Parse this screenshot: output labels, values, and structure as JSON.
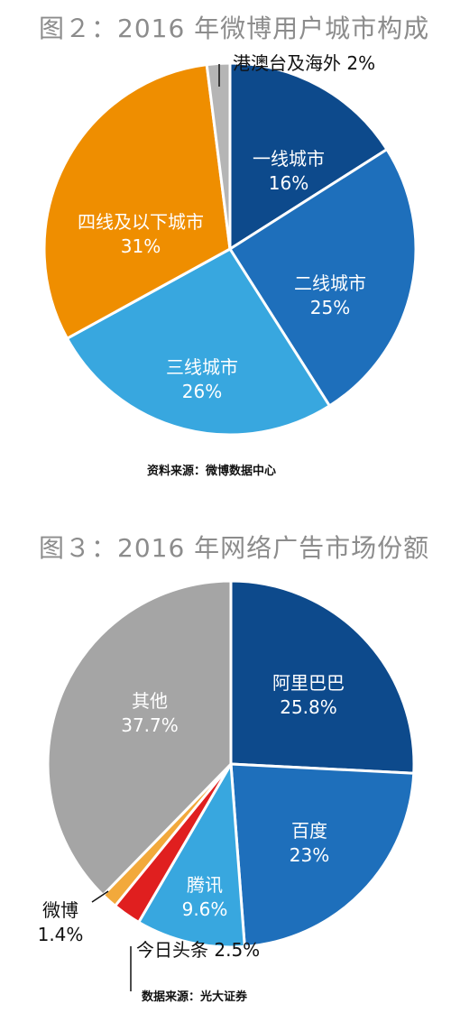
{
  "chart_data": [
    {
      "type": "pie",
      "title": "图２：2016 年微博用户城市构成",
      "source": "资料来源：微博数据中心",
      "slices": [
        {
          "label": "一线城市",
          "value_text": "16%",
          "value": 16,
          "color": "#0d4a8c",
          "text_color": "#ffffff"
        },
        {
          "label": "二线城市",
          "value_text": "25%",
          "value": 25,
          "color": "#1e6fbb",
          "text_color": "#ffffff"
        },
        {
          "label": "三线城市",
          "value_text": "26%",
          "value": 26,
          "color": "#38a7df",
          "text_color": "#ffffff"
        },
        {
          "label": "四线及以下城市",
          "value_text": "31%",
          "value": 31,
          "color": "#ef8e00",
          "text_color": "#ffffff"
        },
        {
          "label": "港澳台及海外",
          "value_text": "2%",
          "value": 2,
          "color": "#b5b5b5",
          "text_color": "#111111"
        }
      ]
    },
    {
      "type": "pie",
      "title": "图３：2016 年网络广告市场份额",
      "source": "数据来源：光大证券",
      "slices": [
        {
          "label": "阿里巴巴",
          "value_text": "25.8%",
          "value": 25.8,
          "color": "#0d4a8c",
          "text_color": "#ffffff"
        },
        {
          "label": "百度",
          "value_text": "23%",
          "value": 23,
          "color": "#1e6fbb",
          "text_color": "#ffffff"
        },
        {
          "label": "腾讯",
          "value_text": "9.6%",
          "value": 9.6,
          "color": "#38a7df",
          "text_color": "#ffffff"
        },
        {
          "label": "今日头条",
          "value_text": "2.5%",
          "value": 2.5,
          "color": "#e01f1f",
          "text_color": "#111111"
        },
        {
          "label": "微博",
          "value_text": "1.4%",
          "value": 1.4,
          "color": "#f2a93b",
          "text_color": "#111111"
        },
        {
          "label": "其他",
          "value_text": "37.7%",
          "value": 37.7,
          "color": "#a5a5a5",
          "text_color": "#ffffff"
        }
      ]
    }
  ]
}
